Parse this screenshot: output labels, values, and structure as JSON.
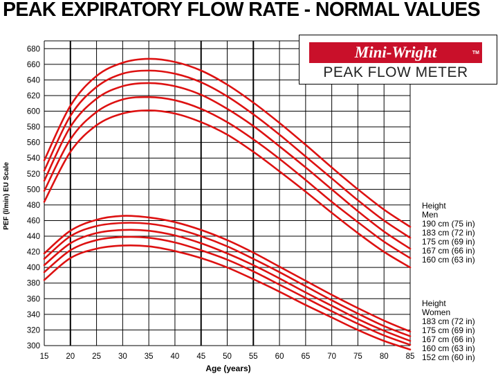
{
  "title": "PEAK EXPIRATORY FLOW RATE - NORMAL VALUES",
  "logo": {
    "brand": "Mini-Wright",
    "tm": "TM",
    "subtitle": "PEAK FLOW METER"
  },
  "legend_men": {
    "heading": "Height",
    "group": "Men",
    "entries": [
      "190 cm (75 in)",
      "183 cm (72 in)",
      "175 cm (69 in)",
      "167 cm (66 in)",
      "160 cm (63 in)"
    ]
  },
  "legend_women": {
    "heading": "Height",
    "group": "Women",
    "entries": [
      "183 cm (72 in)",
      "175 cm (69 in)",
      "167 cm (66 in)",
      "160 cm (63 in)",
      "152 cm (60 in)"
    ]
  },
  "colors": {
    "curve": "#dd1111",
    "grid": "#000000",
    "brand": "#c9102a"
  },
  "chart_data": {
    "type": "line",
    "xlabel": "Age (years)",
    "ylabel": "PEF (l/min) EU Scale",
    "xlim": [
      15,
      85
    ],
    "ylim": [
      300,
      690
    ],
    "x_ticks": [
      15,
      20,
      25,
      30,
      35,
      40,
      45,
      50,
      55,
      60,
      65,
      70,
      75,
      80,
      85
    ],
    "y_ticks": [
      300,
      320,
      340,
      360,
      380,
      400,
      420,
      440,
      460,
      480,
      500,
      520,
      540,
      560,
      580,
      600,
      620,
      640,
      660,
      680
    ],
    "grid": true,
    "x": [
      15,
      20,
      25,
      30,
      35,
      40,
      45,
      50,
      55,
      60,
      65,
      70,
      75,
      80,
      85
    ],
    "series": [
      {
        "name": "Men 190 cm (75 in)",
        "values": [
          537,
          607,
          645,
          662,
          667,
          663,
          652,
          634,
          611,
          585,
          557,
          528,
          500,
          474,
          452
        ]
      },
      {
        "name": "Men 183 cm (72 in)",
        "values": [
          524,
          594,
          631,
          648,
          652,
          648,
          637,
          619,
          596,
          570,
          542,
          514,
          486,
          460,
          438
        ]
      },
      {
        "name": "Men 175 cm (69 in)",
        "values": [
          511,
          580,
          616,
          632,
          636,
          632,
          621,
          603,
          581,
          555,
          528,
          500,
          472,
          446,
          424
        ]
      },
      {
        "name": "Men 167 cm (66 in)",
        "values": [
          498,
          564,
          599,
          615,
          618,
          614,
          603,
          586,
          564,
          539,
          512,
          484,
          458,
          433,
          412
        ]
      },
      {
        "name": "Men 160 cm (63 in)",
        "values": [
          484,
          548,
          582,
          597,
          601,
          597,
          586,
          570,
          548,
          523,
          497,
          470,
          444,
          420,
          400
        ]
      },
      {
        "name": "Women 183 cm (72 in)",
        "values": [
          418,
          447,
          461,
          466,
          464,
          458,
          448,
          435,
          419,
          401,
          383,
          365,
          348,
          332,
          318
        ]
      },
      {
        "name": "Women 175 cm (69 in)",
        "values": [
          411,
          440,
          453,
          457,
          456,
          450,
          440,
          427,
          411,
          394,
          376,
          358,
          341,
          325,
          312
        ]
      },
      {
        "name": "Women 167 cm (66 in)",
        "values": [
          403,
          431,
          444,
          448,
          447,
          441,
          431,
          418,
          403,
          386,
          368,
          351,
          334,
          319,
          306
        ]
      },
      {
        "name": "Women 160 cm (63 in)",
        "values": [
          394,
          422,
          435,
          439,
          438,
          432,
          422,
          410,
          395,
          378,
          361,
          344,
          328,
          313,
          301
        ]
      },
      {
        "name": "Women 152 cm (60 in)",
        "values": [
          384,
          412,
          424,
          428,
          427,
          421,
          412,
          400,
          385,
          369,
          352,
          336,
          320,
          306,
          295
        ]
      }
    ]
  }
}
